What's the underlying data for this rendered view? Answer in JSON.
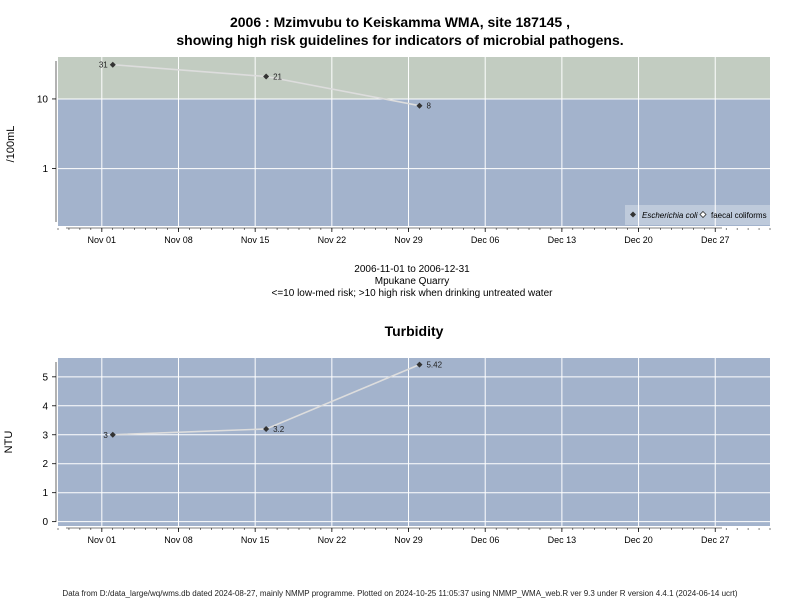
{
  "header": {
    "title_line1": "2006 : Mzimvubu to Keiskamma WMA, site 187145 ,",
    "title_line2": "showing high risk guidelines for indicators of microbial pathogens."
  },
  "notes": {
    "date_range": "2006-11-01 to 2006-12-31",
    "site_name": "Mpukane Quarry",
    "risk_note": "<=10 low-med risk; >10 high risk when drinking untreated water"
  },
  "footer": {
    "text": "Data from D:/data_large/wq/wms.db dated 2024-08-27, mainly NMMP programme. Plotted on 2024-10-25 11:05:37 using NMMP_WMA_web.R ver 9.3 under R version 4.4.1 (2024-06-14 ucrt)"
  },
  "colors": {
    "panel_blue": "#a3b3cc",
    "panel_green": "#c2ccc1",
    "grid": "#ffffff",
    "line": "#dddddd",
    "point": "#333333"
  },
  "chart_data": [
    {
      "type": "line",
      "title": "",
      "ylabel": "/100mL",
      "yscale": "log",
      "ylim": [
        0.15,
        40
      ],
      "xlim": [
        "2006-10-28",
        "2007-01-01"
      ],
      "x_ticks": [
        "Nov 01",
        "Nov 08",
        "Nov 15",
        "Nov 22",
        "Nov 29",
        "Dec 06",
        "Dec 13",
        "Dec 20",
        "Dec 27"
      ],
      "y_ticks": [
        "1",
        "10"
      ],
      "threshold": 10,
      "grid": true,
      "legend": {
        "position": "bottom-right",
        "entries": [
          "Escherichia coli",
          "faecal coliforms"
        ]
      },
      "series": [
        {
          "name": "Escherichia coli",
          "x": [
            "2006-11-02",
            "2006-11-16",
            "2006-11-30"
          ],
          "y": [
            31,
            21,
            8
          ],
          "labels": [
            "31",
            "21",
            "8"
          ]
        }
      ]
    },
    {
      "type": "line",
      "title": "Turbidity",
      "ylabel": "NTU",
      "yscale": "linear",
      "ylim": [
        -0.15,
        5.65
      ],
      "xlim": [
        "2006-10-28",
        "2007-01-01"
      ],
      "x_ticks": [
        "Nov 01",
        "Nov 08",
        "Nov 15",
        "Nov 22",
        "Nov 29",
        "Dec 06",
        "Dec 13",
        "Dec 20",
        "Dec 27"
      ],
      "y_ticks": [
        "0",
        "1",
        "2",
        "3",
        "4",
        "5"
      ],
      "grid": true,
      "series": [
        {
          "x": [
            "2006-11-02",
            "2006-11-16",
            "2006-11-30"
          ],
          "y": [
            3,
            3.2,
            5.42
          ],
          "labels": [
            "3",
            "3.2",
            "5.42"
          ]
        }
      ]
    }
  ]
}
